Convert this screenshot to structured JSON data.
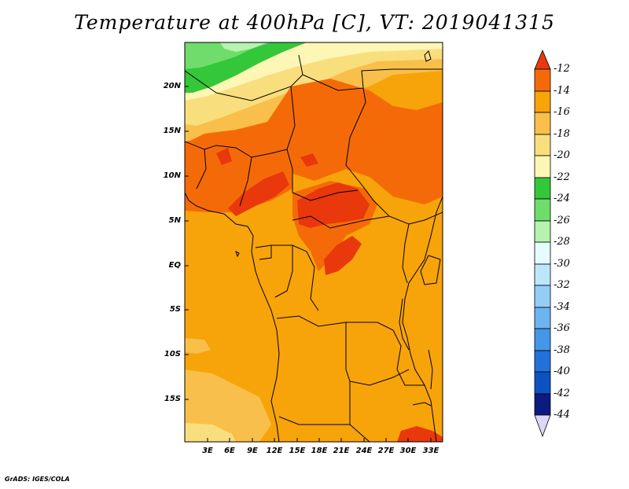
{
  "title": "Temperature at 400hPa [C], VT: 2019041315",
  "credit": "GrADS: IGES/COLA",
  "map": {
    "lat_ticks": [
      "20N",
      "15N",
      "10N",
      "5N",
      "EQ",
      "5S",
      "10S",
      "15S"
    ],
    "lon_ticks": [
      "3E",
      "6E",
      "9E",
      "12E",
      "15E",
      "18E",
      "21E",
      "24E",
      "27E",
      "30E",
      "33E"
    ]
  },
  "colorbar": {
    "labels": [
      "-12",
      "-14",
      "-16",
      "-18",
      "-20",
      "-22",
      "-24",
      "-26",
      "-28",
      "-30",
      "-32",
      "-34",
      "-36",
      "-38",
      "-40",
      "-42",
      "-44"
    ],
    "colors": [
      "#e8380c",
      "#f56a08",
      "#f7a30a",
      "#f8c04a",
      "#f9de7e",
      "#fdf6b5",
      "#34c739",
      "#6fdc6b",
      "#b6f2b0",
      "#e4fbff",
      "#bde6fb",
      "#93cef6",
      "#6cb5ef",
      "#4596e6",
      "#2272dc",
      "#0c52c3",
      "#0d1a7f",
      "#dcd8f6"
    ]
  },
  "fields": {
    "colors": {
      "c12": "#e8380c",
      "c14": "#f56a08",
      "c16": "#f7a30a",
      "c18": "#f8c04a",
      "c20": "#f9de7e",
      "c22": "#fdf6b5",
      "c24": "#34c739",
      "c26": "#6fdc6b",
      "c28": "#b6f2b0"
    }
  }
}
